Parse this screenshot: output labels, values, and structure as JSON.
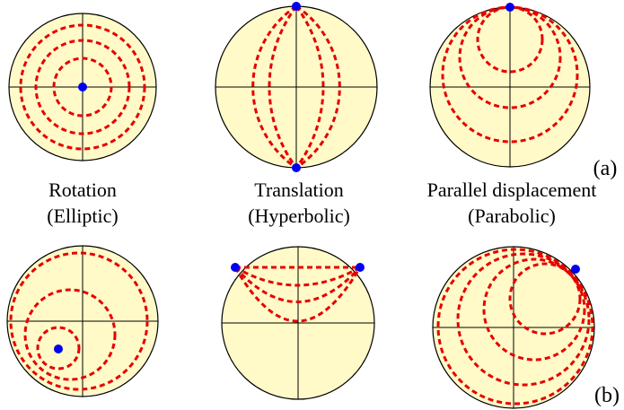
{
  "captions": {
    "rotation": {
      "line1": "Rotation",
      "line2": "(Elliptic)"
    },
    "translation": {
      "line1": "Translation",
      "line2": "(Hyperbolic)"
    },
    "parallel": {
      "line1": "Parallel displacement",
      "line2": "(Parabolic)"
    }
  },
  "panel_labels": {
    "a": "(a)",
    "b": "(b)"
  },
  "colors": {
    "disk_fill": "#fffac8",
    "orbit_stroke": "#e60000",
    "fixed_point": "#0000ee",
    "outline": "#000000"
  }
}
